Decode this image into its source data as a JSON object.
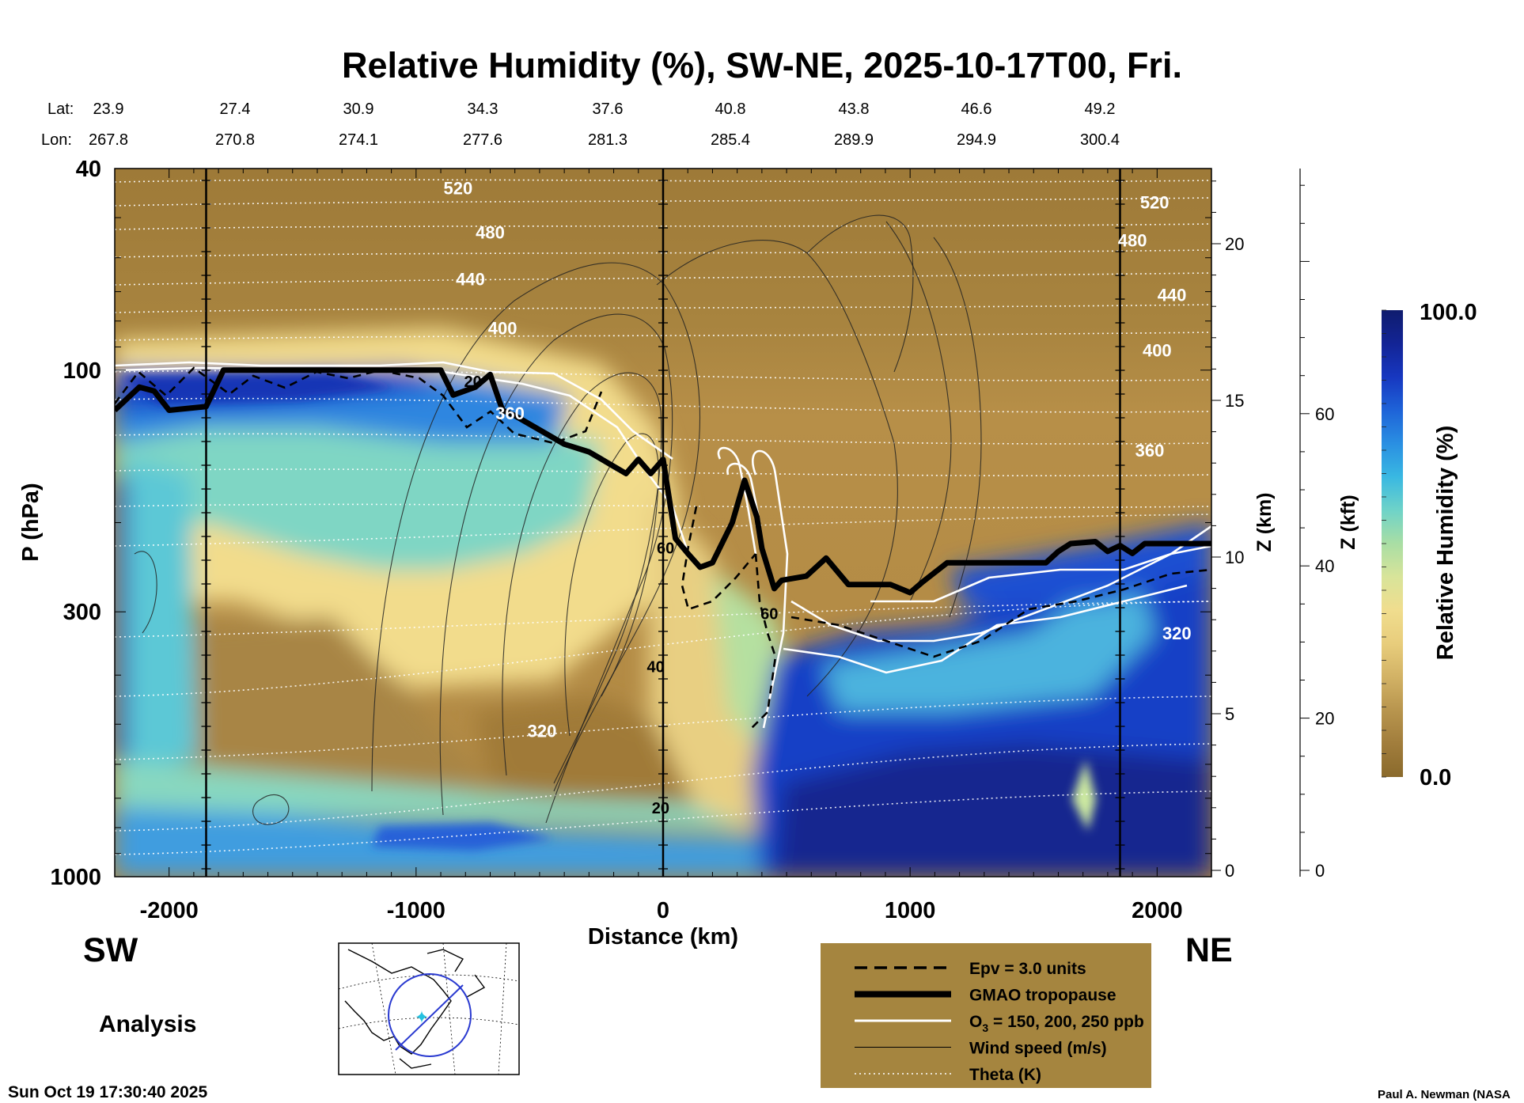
{
  "chart_data": {
    "type": "heatmap",
    "title": "Relative Humidity (%), SW-NE, 2025-10-17T00, Fri.",
    "xlabel": "Distance (km)",
    "ylabel": "P (hPa)",
    "z_km_label": "Z (km)",
    "z_kft_label": "Z (kft)",
    "colorbar_label": "Relative Humidity (%)",
    "colorbar_max": "100.0",
    "colorbar_min": "0.0",
    "xlim": [
      -2220,
      2220
    ],
    "ylim": [
      1000,
      40
    ],
    "x_ticks": [
      "-2000",
      "-1000",
      "0",
      "1000",
      "2000"
    ],
    "x_tick_values": [
      -2000,
      -1000,
      0,
      1000,
      2000
    ],
    "p_ticks": [
      "40",
      "100",
      "300",
      "1000"
    ],
    "p_tick_values": [
      40,
      100,
      300,
      1000
    ],
    "z_km_ticks": [
      "0",
      "5",
      "10",
      "15",
      "20"
    ],
    "z_km_values": [
      0,
      5,
      10,
      15,
      20
    ],
    "z_kft_ticks": [
      "0",
      "20",
      "40",
      "60"
    ],
    "z_kft_values": [
      0,
      20,
      40,
      60
    ],
    "lat_label": "Lat:",
    "lon_label": "Lon:",
    "lat_values": [
      "23.9",
      "27.4",
      "30.9",
      "34.3",
      "37.6",
      "40.8",
      "43.8",
      "46.6",
      "49.2"
    ],
    "lon_values": [
      "267.8",
      "270.8",
      "274.1",
      "277.6",
      "281.3",
      "285.4",
      "289.9",
      "294.9",
      "300.4"
    ],
    "vertical_lines_km": [
      -1850,
      0,
      1850
    ],
    "theta_labels": [
      "520",
      "480",
      "440",
      "400",
      "360",
      "320",
      "520",
      "480",
      "440",
      "400",
      "360",
      "320"
    ],
    "theta_label_coords": [
      [
        -830,
        45
      ],
      [
        -700,
        55
      ],
      [
        -780,
        68
      ],
      [
        -650,
        85
      ],
      [
        -620,
        125
      ],
      [
        -490,
        530
      ],
      [
        1990,
        48
      ],
      [
        1900,
        57
      ],
      [
        2060,
        73
      ],
      [
        2000,
        94
      ],
      [
        1970,
        148
      ],
      [
        2080,
        340
      ]
    ],
    "wind_labels": [
      "20",
      "60",
      "40",
      "20",
      "60"
    ],
    "wind_label_coords": [
      [
        -770,
        108
      ],
      [
        10,
        230
      ],
      [
        -30,
        395
      ],
      [
        -10,
        750
      ],
      [
        430,
        310
      ]
    ],
    "tropopause": {
      "km": [
        -2220,
        -2120,
        -2060,
        -2000,
        -1850,
        -1780,
        -1000,
        -900,
        -850,
        -760,
        -700,
        -650,
        -600,
        -400,
        -300,
        -150,
        -100,
        -50,
        0,
        50,
        100,
        150,
        200,
        280,
        330,
        380,
        400,
        450,
        480,
        580,
        660,
        750,
        920,
        1000,
        1050,
        1150,
        1550,
        1600,
        1650,
        1750,
        1800,
        1850,
        1900,
        1950,
        2000,
        2220
      ],
      "p": [
        120,
        108,
        110,
        120,
        118,
        100,
        100,
        100,
        112,
        108,
        102,
        120,
        123,
        140,
        145,
        160,
        150,
        160,
        150,
        215,
        230,
        245,
        240,
        200,
        165,
        195,
        225,
        270,
        260,
        255,
        235,
        265,
        265,
        275,
        262,
        240,
        240,
        228,
        220,
        218,
        228,
        222,
        230,
        220,
        220,
        220
      ]
    },
    "legend": [
      {
        "label": "Epv = 3.0 units",
        "style": "dashed"
      },
      {
        "label": "GMAO tropopause",
        "style": "thick"
      },
      {
        "label": "O3 = 150, 200, 250 ppb",
        "style": "white"
      },
      {
        "label": "Wind speed (m/s)",
        "style": "thin"
      },
      {
        "label": "Theta (K)",
        "style": "dotted"
      }
    ],
    "colormap": [
      "#8a6a2c",
      "#a17d3c",
      "#b8954e",
      "#d2b265",
      "#e8cd7c",
      "#f0dd8e",
      "#d8e49a",
      "#a9dea4",
      "#6fd3c8",
      "#39b8e2",
      "#2a8fe2",
      "#1e63d8",
      "#1737c0",
      "#132495",
      "#0f1c6e"
    ]
  },
  "labels": {
    "sw": "SW",
    "ne": "NE",
    "analysis": "Analysis",
    "timestamp": "Sun Oct 19 17:30:40 2025",
    "credit": "Paul A. Newman (NASA",
    "legend_o3_main": "O",
    "legend_o3_sub": "3",
    "legend_o3_rest": " = 150, 200, 250 ppb"
  },
  "colors": {
    "legend_bg": "#a5853f",
    "dry": "#8a6a2c",
    "moist": "#0f1c6e"
  }
}
